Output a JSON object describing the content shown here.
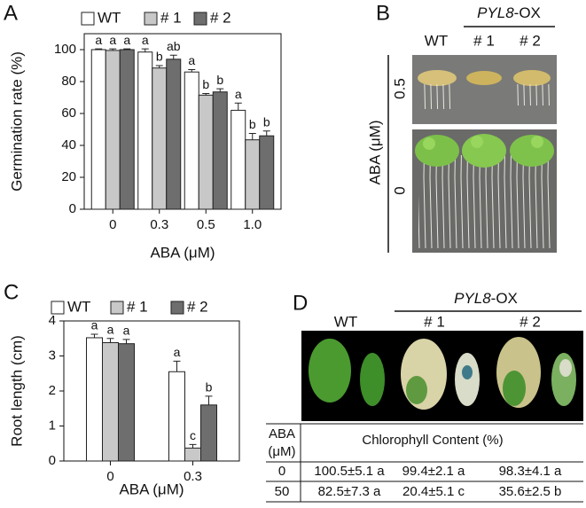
{
  "chart_data": [
    {
      "type": "bar",
      "panel_label": "A",
      "ylabel": "Germination rate (%)",
      "xlabel": "ABA (μM)",
      "categories": [
        "0",
        "0.3",
        "0.5",
        "1.0"
      ],
      "series": [
        {
          "name": "WT",
          "color": "#ffffff",
          "values": [
            100,
            98.5,
            86,
            62
          ],
          "errors": [
            0.5,
            2,
            1.5,
            4.5
          ],
          "letters": [
            "a",
            "a",
            "a",
            "a"
          ]
        },
        {
          "name": "# 1",
          "color": "#c8c8c8",
          "values": [
            99.5,
            88.5,
            71.5,
            43.5
          ],
          "errors": [
            1,
            1.5,
            1,
            4
          ],
          "letters": [
            "a",
            "b",
            "b",
            "b"
          ]
        },
        {
          "name": "# 2",
          "color": "#6e6e6e",
          "values": [
            100,
            94,
            73.5,
            46
          ],
          "errors": [
            0.5,
            2.5,
            2,
            3
          ],
          "letters": [
            "a",
            "ab",
            "b",
            "b"
          ]
        }
      ],
      "ylim": [
        0,
        110
      ],
      "yticks": [
        0,
        20,
        40,
        60,
        80,
        100
      ],
      "grid": false
    },
    {
      "type": "bar",
      "panel_label": "C",
      "ylabel": "Root length (cm)",
      "xlabel": "ABA (μM)",
      "categories": [
        "0",
        "0.3"
      ],
      "series": [
        {
          "name": "WT",
          "color": "#ffffff",
          "values": [
            3.52,
            2.55
          ],
          "errors": [
            0.1,
            0.3
          ],
          "letters": [
            "a",
            "a"
          ]
        },
        {
          "name": "# 1",
          "color": "#c8c8c8",
          "values": [
            3.38,
            0.37
          ],
          "errors": [
            0.12,
            0.1
          ],
          "letters": [
            "a",
            "c"
          ]
        },
        {
          "name": "# 2",
          "color": "#6e6e6e",
          "values": [
            3.35,
            1.6
          ],
          "errors": [
            0.12,
            0.25
          ],
          "letters": [
            "a",
            "b"
          ]
        }
      ],
      "ylim": [
        0,
        4
      ],
      "yticks": [
        0,
        1,
        2,
        3,
        4
      ],
      "grid": false
    }
  ],
  "photo_b": {
    "panel_label": "B",
    "group_gene": "PYL8",
    "group_suffix": "-OX",
    "columns": [
      "WT",
      "# 1",
      "# 2"
    ],
    "row_axis": "ABA (μM)",
    "rows": [
      "0.5",
      "0"
    ]
  },
  "photo_d": {
    "panel_label": "D",
    "group_gene": "PYL8",
    "group_suffix": "-OX",
    "columns": [
      "WT",
      "# 1",
      "# 2"
    ]
  },
  "table_d": {
    "header": [
      "ABA",
      "(μM)",
      "Chlorophyll Content (%)"
    ],
    "rows": [
      [
        "0",
        "100.5±5.1 a",
        "99.4±2.1 a",
        "98.3±4.1 a"
      ],
      [
        "50",
        "82.5±7.3 a",
        "20.4±5.1 c",
        "35.6±2.5 b"
      ]
    ]
  }
}
